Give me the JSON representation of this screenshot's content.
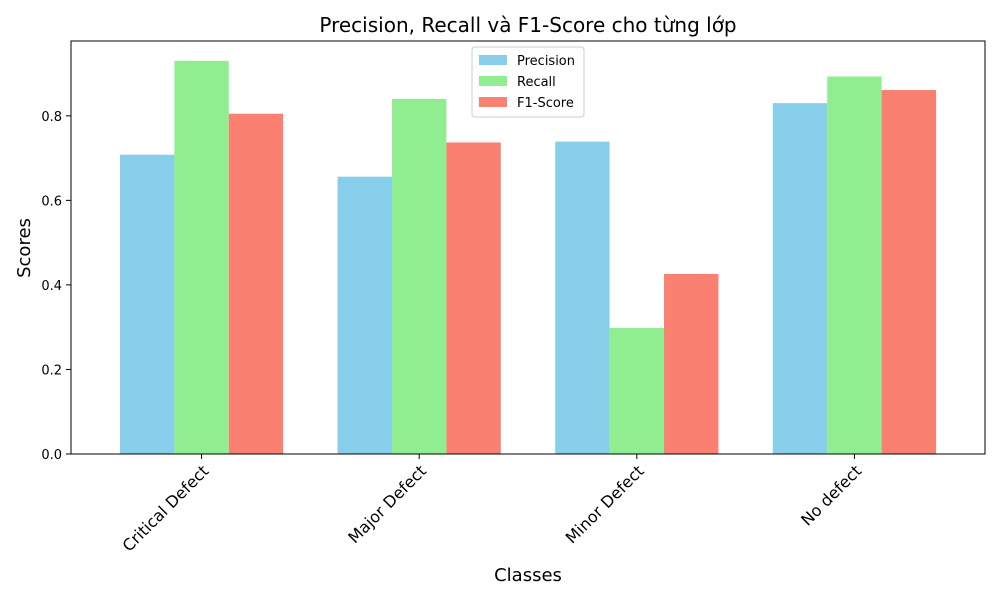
{
  "chart_data": {
    "type": "bar",
    "title": "Precision, Recall và F1-Score cho từng lớp",
    "xlabel": "Classes",
    "ylabel": "Scores",
    "categories": [
      "Critical Defect",
      "Major Defect",
      "Minor Defect",
      "No defect"
    ],
    "series": [
      {
        "name": "Precision",
        "color": "#87CEEB",
        "values": [
          0.708,
          0.656,
          0.739,
          0.83
        ]
      },
      {
        "name": "Recall",
        "color": "#90EE90",
        "values": [
          0.93,
          0.84,
          0.298,
          0.893
        ]
      },
      {
        "name": "F1-Score",
        "color": "#FA8072",
        "values": [
          0.805,
          0.737,
          0.426,
          0.861
        ]
      }
    ],
    "ylim": [
      0,
      0.977
    ],
    "yticks": [
      "0.0",
      "0.2",
      "0.4",
      "0.6",
      "0.8"
    ],
    "legend": "upper-center",
    "grid": false
  }
}
